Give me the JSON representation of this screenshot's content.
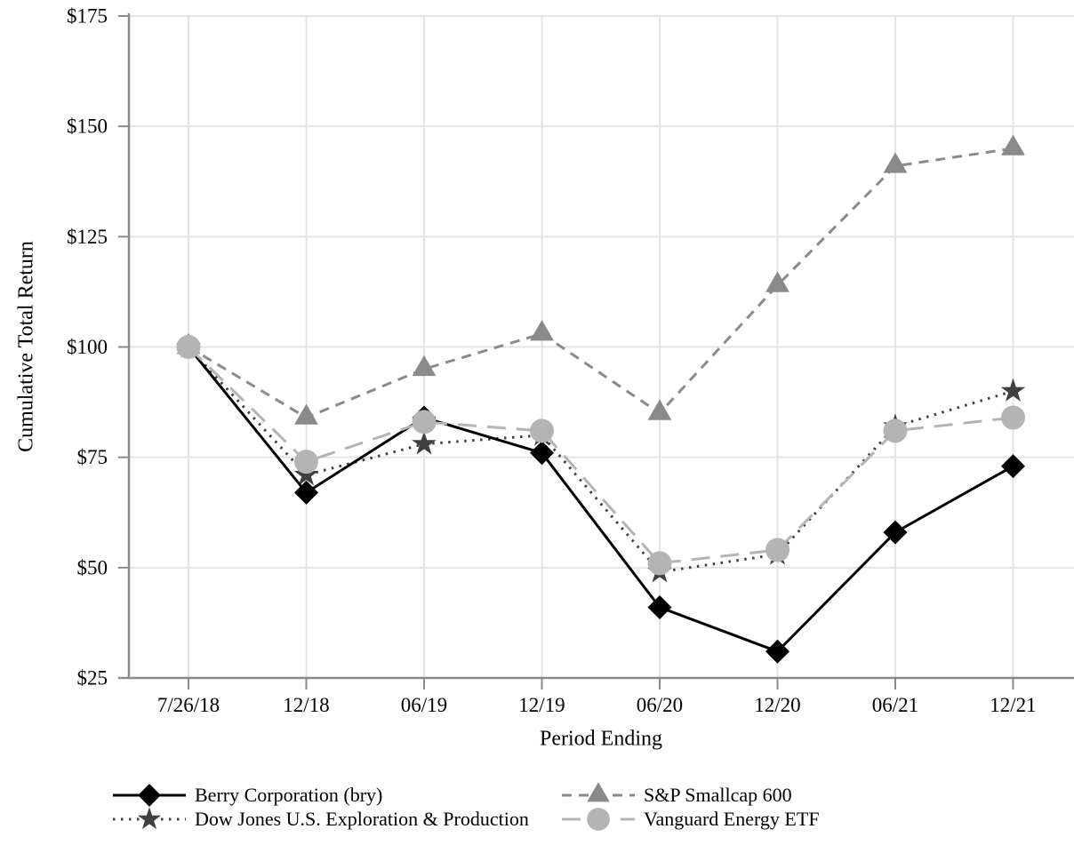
{
  "chart_data": {
    "type": "line",
    "title": "",
    "xlabel": "Period Ending",
    "ylabel": "Cumulative Total Return",
    "categories": [
      "7/26/18",
      "12/18",
      "06/19",
      "12/19",
      "06/20",
      "12/20",
      "06/21",
      "12/21"
    ],
    "series": [
      {
        "name": "Berry Corporation (bry)",
        "values": [
          100,
          67,
          84,
          76,
          41,
          31,
          58,
          73
        ],
        "color": "#000000",
        "line_style": "solid",
        "marker": "diamond"
      },
      {
        "name": "Dow Jones U.S. Exploration & Production",
        "values": [
          100,
          71,
          78,
          80,
          49,
          53,
          82,
          90
        ],
        "color": "#404040",
        "line_style": "dotted",
        "marker": "star"
      },
      {
        "name": "S&P Smallcap 600",
        "values": [
          100,
          84,
          95,
          103,
          85,
          114,
          141,
          145
        ],
        "color": "#8a8a8a",
        "line_style": "dashed",
        "marker": "triangle"
      },
      {
        "name": "Vanguard Energy ETF",
        "values": [
          100,
          74,
          83,
          81,
          51,
          54,
          81,
          84
        ],
        "color": "#b4b4b4",
        "line_style": "long-dash",
        "marker": "circle"
      }
    ],
    "ylim": [
      25,
      175
    ],
    "y_ticks": [
      25,
      50,
      75,
      100,
      125,
      150,
      175
    ],
    "y_tick_labels": [
      "$25",
      "$50",
      "$75",
      "$100",
      "$125",
      "$150",
      "$175"
    ],
    "grid": true,
    "legend_position": "bottom",
    "legend_columns": [
      [
        "Berry Corporation (bry)",
        "Dow Jones U.S. Exploration & Production"
      ],
      [
        "S&P Smallcap 600",
        "Vanguard Energy ETF"
      ]
    ],
    "draw_order": [
      2,
      1,
      0,
      3
    ],
    "colors": {
      "grid": "#e4e4e4",
      "axis": "#8a8a8a",
      "text": "#000000"
    }
  }
}
